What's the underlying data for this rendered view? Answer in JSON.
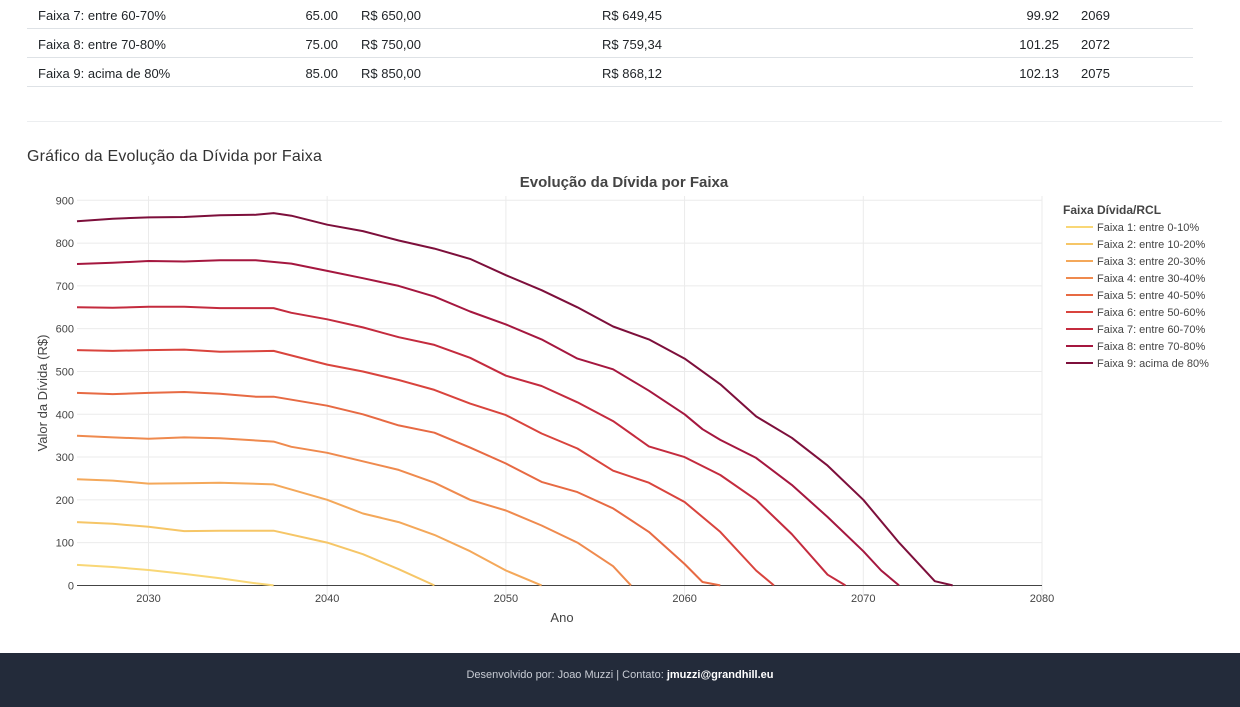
{
  "table": {
    "rows": [
      {
        "faixa": "Faixa 7: entre 60-70%",
        "pct": "65.00",
        "valor": "R$ 650,00",
        "valor2": "R$ 649,45",
        "ratio": "99.92",
        "ano": "2069"
      },
      {
        "faixa": "Faixa 8: entre 70-80%",
        "pct": "75.00",
        "valor": "R$ 750,00",
        "valor2": "R$ 759,34",
        "ratio": "101.25",
        "ano": "2072"
      },
      {
        "faixa": "Faixa 9: acima de 80%",
        "pct": "85.00",
        "valor": "R$ 850,00",
        "valor2": "R$ 868,12",
        "ratio": "102.13",
        "ano": "2075"
      }
    ]
  },
  "section_title": "Gráfico da Evolução da Dívida por Faixa",
  "chart_data": {
    "type": "line",
    "title": "Evolução da Dívida por Faixa",
    "xlabel": "Ano",
    "ylabel": "Valor da Dívida (R$)",
    "xlim": [
      2026,
      2080
    ],
    "ylim": [
      -20,
      910
    ],
    "xticks": [
      2030,
      2040,
      2050,
      2060,
      2070,
      2080
    ],
    "yticks": [
      0,
      100,
      200,
      300,
      400,
      500,
      600,
      700,
      800,
      900
    ],
    "grid": true,
    "legend_title": "Faixa Dívida/RCL",
    "legend_position": "right",
    "series": [
      {
        "name": "Faixa 1: entre 0-10%",
        "color": "#f9d776",
        "points": [
          [
            2026,
            48
          ],
          [
            2028,
            43
          ],
          [
            2030,
            36
          ],
          [
            2032,
            27
          ],
          [
            2034,
            17
          ],
          [
            2036,
            5
          ],
          [
            2037,
            0
          ]
        ]
      },
      {
        "name": "Faixa 2: entre 10-20%",
        "color": "#f6c667",
        "points": [
          [
            2026,
            148
          ],
          [
            2028,
            144
          ],
          [
            2030,
            137
          ],
          [
            2032,
            127
          ],
          [
            2034,
            128
          ],
          [
            2037,
            128
          ],
          [
            2040,
            100
          ],
          [
            2042,
            73
          ],
          [
            2044,
            38
          ],
          [
            2046,
            0
          ]
        ]
      },
      {
        "name": "Faixa 3: entre 20-30%",
        "color": "#f4a85a",
        "points": [
          [
            2026,
            248
          ],
          [
            2028,
            245
          ],
          [
            2030,
            238
          ],
          [
            2032,
            239
          ],
          [
            2034,
            240
          ],
          [
            2037,
            236
          ],
          [
            2040,
            200
          ],
          [
            2042,
            168
          ],
          [
            2044,
            148
          ],
          [
            2046,
            118
          ],
          [
            2048,
            80
          ],
          [
            2050,
            35
          ],
          [
            2052,
            0
          ]
        ]
      },
      {
        "name": "Faixa 4: entre 30-40%",
        "color": "#ef8a4e",
        "points": [
          [
            2026,
            350
          ],
          [
            2028,
            346
          ],
          [
            2030,
            343
          ],
          [
            2032,
            346
          ],
          [
            2034,
            344
          ],
          [
            2037,
            336
          ],
          [
            2038,
            324
          ],
          [
            2040,
            310
          ],
          [
            2042,
            290
          ],
          [
            2044,
            270
          ],
          [
            2046,
            240
          ],
          [
            2048,
            200
          ],
          [
            2050,
            175
          ],
          [
            2052,
            140
          ],
          [
            2054,
            100
          ],
          [
            2056,
            45
          ],
          [
            2057,
            0
          ]
        ]
      },
      {
        "name": "Faixa 5: entre 40-50%",
        "color": "#e76a43",
        "points": [
          [
            2026,
            450
          ],
          [
            2028,
            447
          ],
          [
            2030,
            450
          ],
          [
            2032,
            452
          ],
          [
            2034,
            448
          ],
          [
            2036,
            441
          ],
          [
            2037,
            441
          ],
          [
            2040,
            420
          ],
          [
            2042,
            400
          ],
          [
            2044,
            374
          ],
          [
            2046,
            357
          ],
          [
            2048,
            322
          ],
          [
            2050,
            285
          ],
          [
            2052,
            242
          ],
          [
            2054,
            218
          ],
          [
            2056,
            180
          ],
          [
            2058,
            125
          ],
          [
            2060,
            50
          ],
          [
            2061,
            8
          ],
          [
            2062,
            0
          ]
        ]
      },
      {
        "name": "Faixa 6: entre 50-60%",
        "color": "#d9443d",
        "points": [
          [
            2026,
            550
          ],
          [
            2028,
            548
          ],
          [
            2030,
            550
          ],
          [
            2032,
            551
          ],
          [
            2034,
            546
          ],
          [
            2037,
            548
          ],
          [
            2040,
            516
          ],
          [
            2042,
            500
          ],
          [
            2044,
            480
          ],
          [
            2046,
            457
          ],
          [
            2048,
            425
          ],
          [
            2050,
            398
          ],
          [
            2052,
            355
          ],
          [
            2054,
            320
          ],
          [
            2056,
            268
          ],
          [
            2058,
            240
          ],
          [
            2060,
            195
          ],
          [
            2062,
            125
          ],
          [
            2064,
            35
          ],
          [
            2065,
            0
          ]
        ]
      },
      {
        "name": "Faixa 7: entre 60-70%",
        "color": "#c42b3e",
        "points": [
          [
            2026,
            650
          ],
          [
            2028,
            649
          ],
          [
            2030,
            651
          ],
          [
            2032,
            651
          ],
          [
            2034,
            648
          ],
          [
            2037,
            648
          ],
          [
            2038,
            637
          ],
          [
            2040,
            622
          ],
          [
            2042,
            603
          ],
          [
            2044,
            580
          ],
          [
            2046,
            562
          ],
          [
            2048,
            532
          ],
          [
            2050,
            490
          ],
          [
            2052,
            466
          ],
          [
            2054,
            428
          ],
          [
            2056,
            384
          ],
          [
            2058,
            325
          ],
          [
            2060,
            300
          ],
          [
            2062,
            258
          ],
          [
            2064,
            200
          ],
          [
            2066,
            120
          ],
          [
            2068,
            25
          ],
          [
            2069,
            0
          ]
        ]
      },
      {
        "name": "Faixa 8: entre 70-80%",
        "color": "#a5173f",
        "points": [
          [
            2026,
            751
          ],
          [
            2028,
            754
          ],
          [
            2030,
            758
          ],
          [
            2032,
            757
          ],
          [
            2034,
            760
          ],
          [
            2036,
            760
          ],
          [
            2038,
            752
          ],
          [
            2040,
            735
          ],
          [
            2042,
            718
          ],
          [
            2044,
            700
          ],
          [
            2046,
            675
          ],
          [
            2048,
            640
          ],
          [
            2050,
            610
          ],
          [
            2052,
            575
          ],
          [
            2054,
            530
          ],
          [
            2056,
            505
          ],
          [
            2058,
            455
          ],
          [
            2060,
            400
          ],
          [
            2061,
            365
          ],
          [
            2062,
            340
          ],
          [
            2064,
            298
          ],
          [
            2066,
            235
          ],
          [
            2068,
            160
          ],
          [
            2070,
            80
          ],
          [
            2071,
            35
          ],
          [
            2072,
            0
          ]
        ]
      },
      {
        "name": "Faixa 9: acima de 80%",
        "color": "#7d0f3b",
        "points": [
          [
            2026,
            851
          ],
          [
            2028,
            857
          ],
          [
            2030,
            860
          ],
          [
            2032,
            861
          ],
          [
            2034,
            865
          ],
          [
            2036,
            866
          ],
          [
            2037,
            870
          ],
          [
            2038,
            864
          ],
          [
            2040,
            843
          ],
          [
            2042,
            828
          ],
          [
            2044,
            806
          ],
          [
            2046,
            787
          ],
          [
            2048,
            763
          ],
          [
            2050,
            725
          ],
          [
            2052,
            690
          ],
          [
            2054,
            650
          ],
          [
            2056,
            605
          ],
          [
            2058,
            575
          ],
          [
            2060,
            530
          ],
          [
            2062,
            470
          ],
          [
            2064,
            395
          ],
          [
            2066,
            345
          ],
          [
            2068,
            280
          ],
          [
            2070,
            200
          ],
          [
            2072,
            100
          ],
          [
            2074,
            10
          ],
          [
            2075,
            0
          ]
        ]
      }
    ]
  },
  "footer": {
    "text": "Desenvolvido por: Joao Muzzi | Contato: ",
    "email": "jmuzzi@grandhill.eu"
  }
}
